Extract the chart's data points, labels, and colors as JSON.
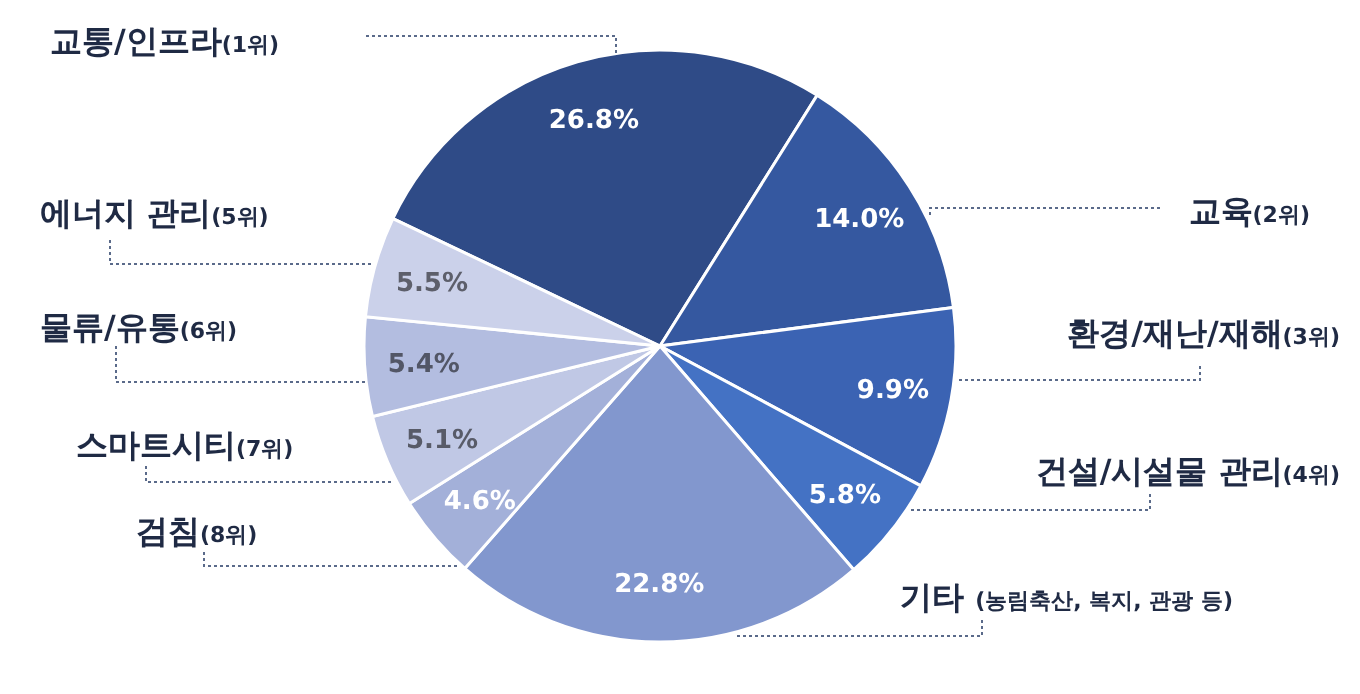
{
  "chart_data": {
    "type": "pie",
    "categories": [
      "교통/인프라(1위)",
      "교육(2위)",
      "환경/재난/재해(3위)",
      "건설/시설물 관리(4위)",
      "기타 (농림축산, 복지, 관광 등)",
      "검침(8위)",
      "스마트시티(7위)",
      "물류/유통(6위)",
      "에너지 관리(5위)"
    ],
    "values": [
      26.8,
      14.0,
      9.9,
      5.8,
      22.8,
      4.6,
      5.1,
      5.4,
      5.5
    ],
    "value_labels": [
      "26.8%",
      "14.0%",
      "9.9%",
      "5.8%",
      "22.8%",
      "4.6%",
      "5.1%",
      "5.4%",
      "5.5%"
    ],
    "colors": [
      "#2f4b87",
      "#3558a0",
      "#3b63b3",
      "#4472c4",
      "#8297ce",
      "#a3b0d9",
      "#c0c8e5",
      "#b3bde0",
      "#cbd1ea"
    ]
  }
}
